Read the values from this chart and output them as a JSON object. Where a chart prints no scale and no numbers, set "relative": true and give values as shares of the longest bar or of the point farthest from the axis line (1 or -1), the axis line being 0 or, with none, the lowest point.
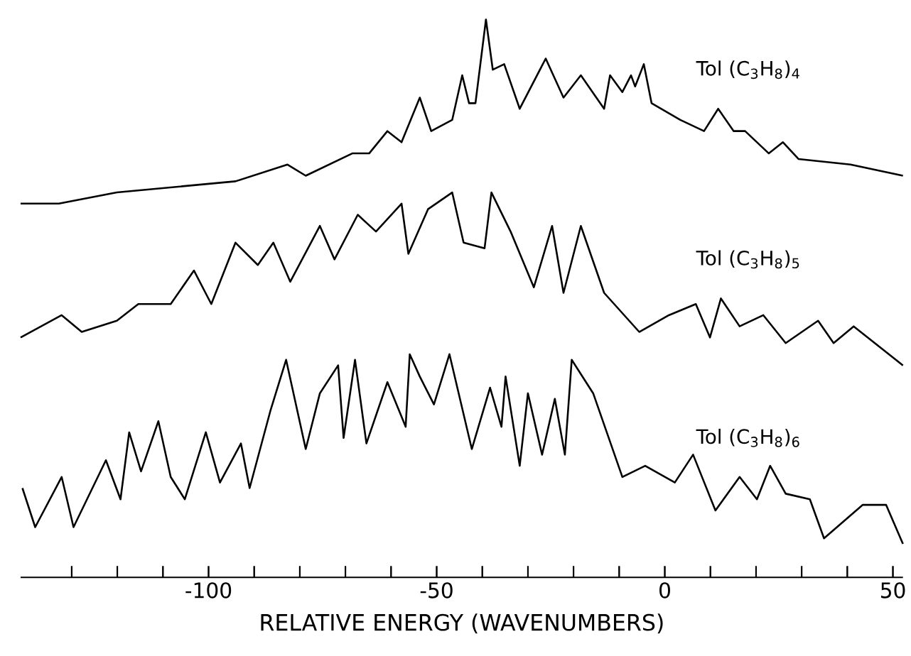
{
  "chart_data": {
    "type": "line",
    "relative": true,
    "tick_labels": "x",
    "xlabel": "RELATIVE ENERGY (WAVENUMBERS)",
    "xlim": [
      -141.2,
      52.2
    ],
    "xticks": [
      {
        "value": -130,
        "label": null
      },
      {
        "value": -120,
        "label": null
      },
      {
        "value": -110,
        "label": null
      },
      -100,
      {
        "value": -90,
        "label": null
      },
      {
        "value": -80,
        "label": null
      },
      {
        "value": -70,
        "label": null
      },
      {
        "value": -60,
        "label": null
      },
      -50,
      {
        "value": -40,
        "label": null
      },
      {
        "value": -30,
        "label": null
      },
      {
        "value": -20,
        "label": null
      },
      {
        "value": -10,
        "label": null
      },
      0,
      {
        "value": 10,
        "label": null
      },
      {
        "value": 20,
        "label": null
      },
      {
        "value": 30,
        "label": null
      },
      {
        "value": 40,
        "label": null
      },
      50
    ],
    "series": [
      {
        "name": "Tol (C$_{3}$H$_{8}$)$_{4}$",
        "color": "#000000",
        "x": [
          -141.2,
          -132.8,
          -120.1,
          -107.1,
          -94.1,
          -82.7,
          -78.7,
          -68.5,
          -64.8,
          -60.8,
          -57.7,
          -53.7,
          -51.2,
          -46.6,
          -44.4,
          -42.9,
          -41.5,
          -39.2,
          -37.7,
          -35.2,
          -31.8,
          -26.1,
          -22.2,
          -18.4,
          -13.3,
          -12.0,
          -9.3,
          -7.4,
          -6.5,
          -4.6,
          -2.9,
          3.4,
          8.6,
          11.7,
          15.1,
          17.6,
          22.8,
          25.9,
          29.3,
          40.7,
          52.2
        ],
        "values": [
          0.67,
          0.67,
          0.69,
          0.7,
          0.71,
          0.74,
          0.72,
          0.76,
          0.76,
          0.8,
          0.78,
          0.86,
          0.8,
          0.82,
          0.9,
          0.85,
          0.85,
          1.0,
          0.91,
          0.92,
          0.84,
          0.93,
          0.86,
          0.9,
          0.84,
          0.9,
          0.87,
          0.9,
          0.88,
          0.92,
          0.85,
          0.82,
          0.8,
          0.84,
          0.8,
          0.8,
          0.76,
          0.78,
          0.75,
          0.74,
          0.72
        ]
      },
      {
        "name": "Tol (C$_{3}$H$_{8}$)$_{5}$",
        "color": "#000000",
        "x": [
          -141.2,
          -132.2,
          -127.8,
          -120.1,
          -115.4,
          -108.3,
          -103.2,
          -99.4,
          -94.1,
          -89.2,
          -85.8,
          -82.1,
          -75.6,
          -72.4,
          -67.3,
          -63.3,
          -57.7,
          -56.2,
          -51.9,
          -46.6,
          -44.1,
          -39.5,
          -38.0,
          -33.8,
          -28.7,
          -24.7,
          -22.2,
          -18.4,
          -13.3,
          -5.6,
          0.9,
          6.8,
          9.9,
          12.3,
          16.4,
          21.6,
          26.5,
          33.6,
          37.0,
          41.4,
          52.2
        ],
        "values": [
          0.43,
          0.47,
          0.44,
          0.46,
          0.49,
          0.49,
          0.55,
          0.49,
          0.6,
          0.56,
          0.6,
          0.53,
          0.63,
          0.57,
          0.65,
          0.62,
          0.67,
          0.58,
          0.66,
          0.69,
          0.6,
          0.59,
          0.69,
          0.62,
          0.52,
          0.63,
          0.51,
          0.63,
          0.51,
          0.44,
          0.47,
          0.49,
          0.43,
          0.5,
          0.45,
          0.47,
          0.42,
          0.46,
          0.42,
          0.45,
          0.38
        ]
      },
      {
        "name": "Tol (C$_{3}$H$_{8}$)$_{6}$",
        "color": "#000000",
        "x": [
          -140.8,
          -138.0,
          -132.2,
          -129.6,
          -122.5,
          -119.3,
          -117.4,
          -114.8,
          -111.0,
          -108.3,
          -105.2,
          -100.6,
          -97.5,
          -92.9,
          -91.0,
          -86.4,
          -83.0,
          -78.7,
          -75.6,
          -71.6,
          -70.4,
          -67.9,
          -65.4,
          -60.8,
          -56.8,
          -55.9,
          -53.7,
          -50.6,
          -47.2,
          -42.3,
          -38.3,
          -35.8,
          -34.9,
          -31.8,
          -30.0,
          -26.9,
          -24.1,
          -21.9,
          -20.4,
          -15.7,
          -9.3,
          -4.3,
          2.2,
          6.2,
          11.1,
          16.4,
          20.2,
          23.1,
          26.5,
          31.8,
          34.9,
          43.4,
          48.5,
          52.2
        ],
        "values": [
          0.16,
          0.09,
          0.18,
          0.09,
          0.21,
          0.14,
          0.26,
          0.19,
          0.28,
          0.18,
          0.14,
          0.26,
          0.17,
          0.24,
          0.16,
          0.3,
          0.39,
          0.23,
          0.33,
          0.38,
          0.25,
          0.39,
          0.24,
          0.35,
          0.27,
          0.4,
          0.36,
          0.31,
          0.4,
          0.23,
          0.34,
          0.27,
          0.36,
          0.2,
          0.33,
          0.22,
          0.32,
          0.22,
          0.39,
          0.33,
          0.18,
          0.2,
          0.17,
          0.22,
          0.12,
          0.18,
          0.14,
          0.2,
          0.15,
          0.14,
          0.07,
          0.13,
          0.13,
          0.06
        ]
      }
    ]
  }
}
